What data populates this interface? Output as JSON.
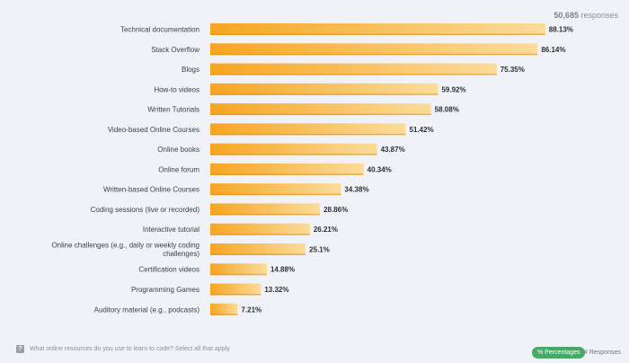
{
  "responses_count": "50,685",
  "responses_label": "responses",
  "question": "What online resources do you use to learn to code? Select all that apply.",
  "toggles": {
    "percentages": "% Percentages",
    "responses": "# Responses"
  },
  "colors": {
    "bar_start": "#f7a521",
    "bar_end": "#fbdc9b",
    "label": "#3a3f47",
    "value": "#2b2f36"
  },
  "chart_data": {
    "type": "bar",
    "orientation": "horizontal",
    "xlim": [
      0,
      100
    ],
    "unit": "%",
    "categories": [
      [
        "Technical documentation"
      ],
      [
        "Stack Overflow"
      ],
      [
        "Blogs"
      ],
      [
        "How-to videos"
      ],
      [
        "Written Tutorials"
      ],
      [
        "Video-based Online Courses"
      ],
      [
        "Online books"
      ],
      [
        "Online forum"
      ],
      [
        "Written-based Online Courses"
      ],
      [
        "Coding sessions (live or recorded)"
      ],
      [
        "Interactive tutorial"
      ],
      [
        "Online challenges (e.g., daily or weekly coding",
        "challenges)"
      ],
      [
        "Certification videos"
      ],
      [
        "Programming Games"
      ],
      [
        "Auditory material (e.g., podcasts)"
      ]
    ],
    "values": [
      88.13,
      86.14,
      75.35,
      59.92,
      58.08,
      51.42,
      43.87,
      40.34,
      34.38,
      28.86,
      26.21,
      25.1,
      14.88,
      13.32,
      7.21
    ],
    "value_labels": [
      "88.13%",
      "86.14%",
      "75.35%",
      "59.92%",
      "58.08%",
      "51.42%",
      "43.87%",
      "40.34%",
      "34.38%",
      "28.86%",
      "26.21%",
      "25.1%",
      "14.88%",
      "13.32%",
      "7.21%"
    ]
  }
}
